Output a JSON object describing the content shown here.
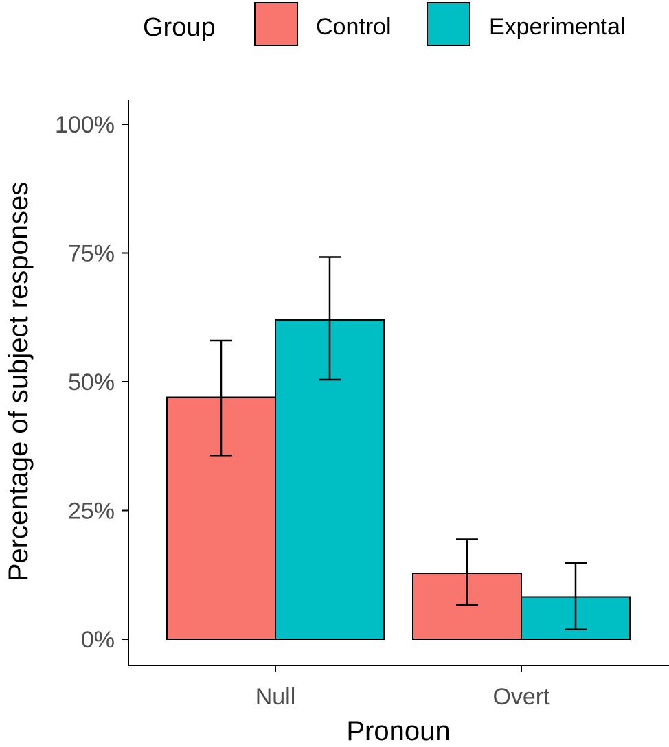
{
  "chart_data": {
    "type": "bar",
    "title": "",
    "xlabel": "Pronoun",
    "ylabel": "Percentage of subject responses",
    "categories": [
      "Null",
      "Overt"
    ],
    "ylim": [
      0,
      1.05
    ],
    "yticks": [
      0,
      0.25,
      0.5,
      0.75,
      1.0
    ],
    "ytick_labels": [
      "0%",
      "25%",
      "50%",
      "75%",
      "100%"
    ],
    "legend": {
      "title": "Group",
      "position": "top",
      "entries": [
        "Control",
        "Experimental"
      ]
    },
    "series": [
      {
        "name": "Control",
        "color": "#F8766D",
        "values": [
          0.47,
          0.128
        ],
        "error_low": [
          0.357,
          0.067
        ],
        "error_high": [
          0.58,
          0.194
        ]
      },
      {
        "name": "Experimental",
        "color": "#00BFC4",
        "values": [
          0.62,
          0.082
        ],
        "error_low": [
          0.504,
          0.019
        ],
        "error_high": [
          0.742,
          0.148
        ]
      }
    ],
    "grid": false,
    "error_bars": true
  }
}
